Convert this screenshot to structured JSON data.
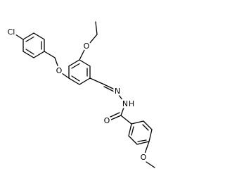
{
  "atoms": {
    "chlorine": "Cl",
    "ether_oxygen": "O",
    "ethoxy_oxygen": "O",
    "imine_nitrogen": "N",
    "amide_nitrogen": "N",
    "amide_hydrogen": "H",
    "carbonyl_oxygen": "O",
    "methoxy_oxygen": "O"
  }
}
